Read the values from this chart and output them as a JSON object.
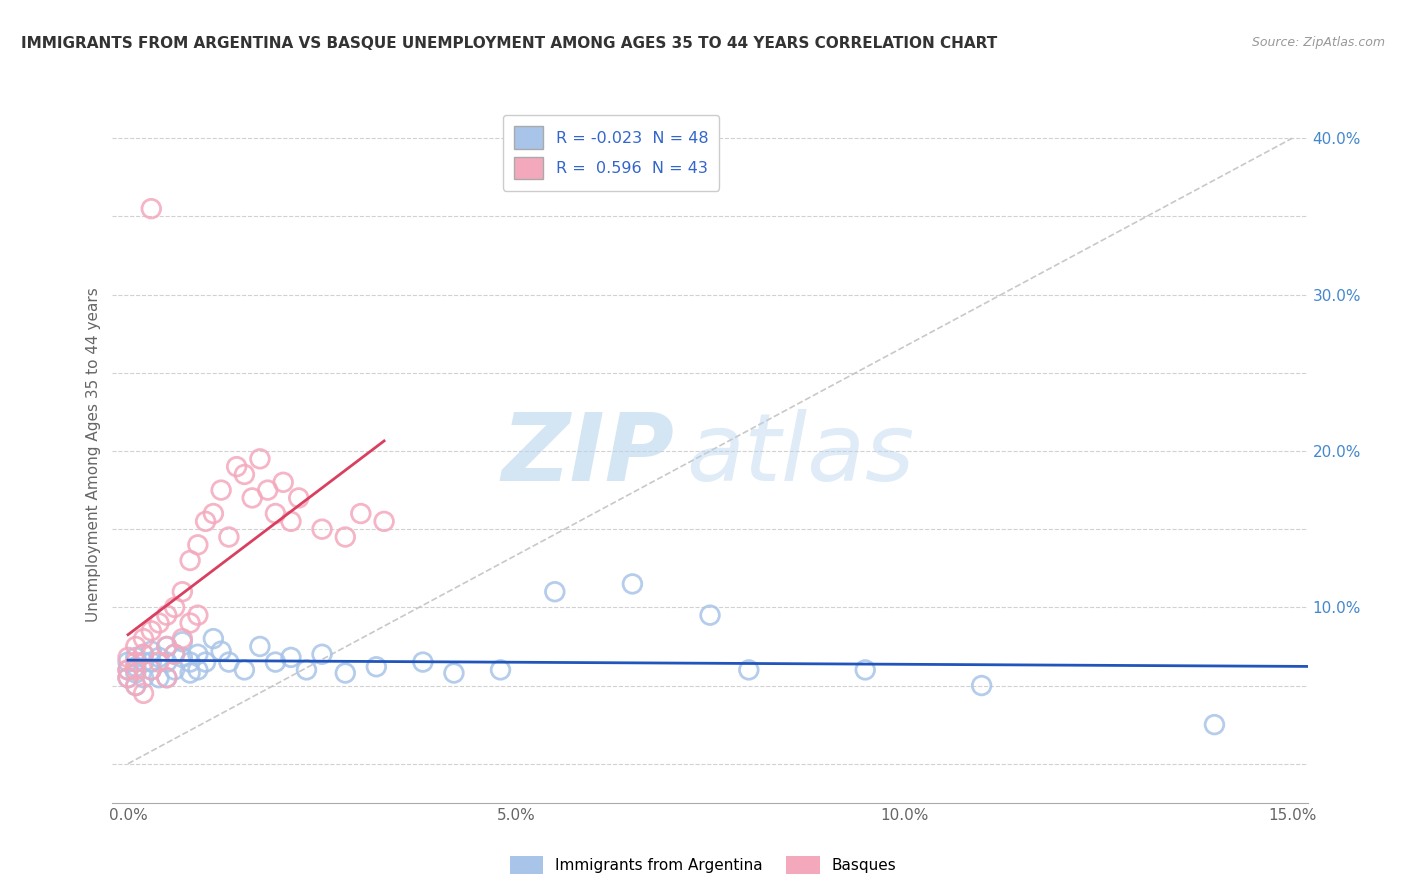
{
  "title": "IMMIGRANTS FROM ARGENTINA VS BASQUE UNEMPLOYMENT AMONG AGES 35 TO 44 YEARS CORRELATION CHART",
  "source": "Source: ZipAtlas.com",
  "ylabel": "Unemployment Among Ages 35 to 44 years",
  "legend_labels": [
    "Immigrants from Argentina",
    "Basques"
  ],
  "R_blue": -0.023,
  "N_blue": 48,
  "R_pink": 0.596,
  "N_pink": 43,
  "blue_color": "#A8C4E8",
  "pink_color": "#F4A8BC",
  "blue_line_color": "#2255BB",
  "pink_line_color": "#D94060",
  "ref_line_color": "#BBBBBB",
  "grid_color": "#CCCCCC",
  "xlim": [
    -0.002,
    0.152
  ],
  "ylim": [
    -0.025,
    0.42
  ],
  "xtick_positions": [
    0.0,
    0.05,
    0.1,
    0.15
  ],
  "xtick_labels": [
    "0.0%",
    "5.0%",
    "10.0%",
    "15.0%"
  ],
  "ytick_positions": [
    0.0,
    0.1,
    0.2,
    0.3,
    0.4
  ],
  "ytick_labels": [
    "",
    "10.0%",
    "20.0%",
    "30.0%",
    "40.0%"
  ],
  "blue_x": [
    0.0,
    0.0,
    0.0,
    0.001,
    0.001,
    0.001,
    0.001,
    0.002,
    0.002,
    0.002,
    0.003,
    0.003,
    0.003,
    0.004,
    0.004,
    0.005,
    0.005,
    0.005,
    0.006,
    0.006,
    0.007,
    0.007,
    0.008,
    0.008,
    0.009,
    0.009,
    0.01,
    0.011,
    0.012,
    0.013,
    0.015,
    0.017,
    0.019,
    0.021,
    0.023,
    0.025,
    0.028,
    0.032,
    0.038,
    0.042,
    0.048,
    0.055,
    0.065,
    0.075,
    0.08,
    0.095,
    0.11,
    0.14
  ],
  "blue_y": [
    0.065,
    0.06,
    0.055,
    0.068,
    0.062,
    0.058,
    0.05,
    0.07,
    0.065,
    0.055,
    0.072,
    0.065,
    0.06,
    0.068,
    0.055,
    0.075,
    0.065,
    0.055,
    0.07,
    0.06,
    0.078,
    0.068,
    0.065,
    0.058,
    0.07,
    0.06,
    0.065,
    0.08,
    0.072,
    0.065,
    0.06,
    0.075,
    0.065,
    0.068,
    0.06,
    0.07,
    0.058,
    0.062,
    0.065,
    0.058,
    0.06,
    0.11,
    0.115,
    0.095,
    0.06,
    0.06,
    0.05,
    0.025
  ],
  "pink_x": [
    0.0,
    0.0,
    0.0,
    0.001,
    0.001,
    0.001,
    0.001,
    0.002,
    0.002,
    0.002,
    0.003,
    0.003,
    0.003,
    0.004,
    0.004,
    0.005,
    0.005,
    0.005,
    0.006,
    0.006,
    0.007,
    0.007,
    0.008,
    0.008,
    0.009,
    0.009,
    0.01,
    0.011,
    0.012,
    0.013,
    0.014,
    0.015,
    0.016,
    0.017,
    0.018,
    0.019,
    0.02,
    0.021,
    0.022,
    0.025,
    0.028,
    0.03,
    0.033
  ],
  "pink_y": [
    0.068,
    0.06,
    0.055,
    0.075,
    0.065,
    0.06,
    0.05,
    0.08,
    0.07,
    0.045,
    0.355,
    0.085,
    0.06,
    0.09,
    0.065,
    0.095,
    0.075,
    0.055,
    0.1,
    0.07,
    0.11,
    0.08,
    0.13,
    0.09,
    0.14,
    0.095,
    0.155,
    0.16,
    0.175,
    0.145,
    0.19,
    0.185,
    0.17,
    0.195,
    0.175,
    0.16,
    0.18,
    0.155,
    0.17,
    0.15,
    0.145,
    0.16,
    0.155
  ],
  "watermark_zip": "ZIP",
  "watermark_atlas": "atlas",
  "background_color": "#FFFFFF"
}
